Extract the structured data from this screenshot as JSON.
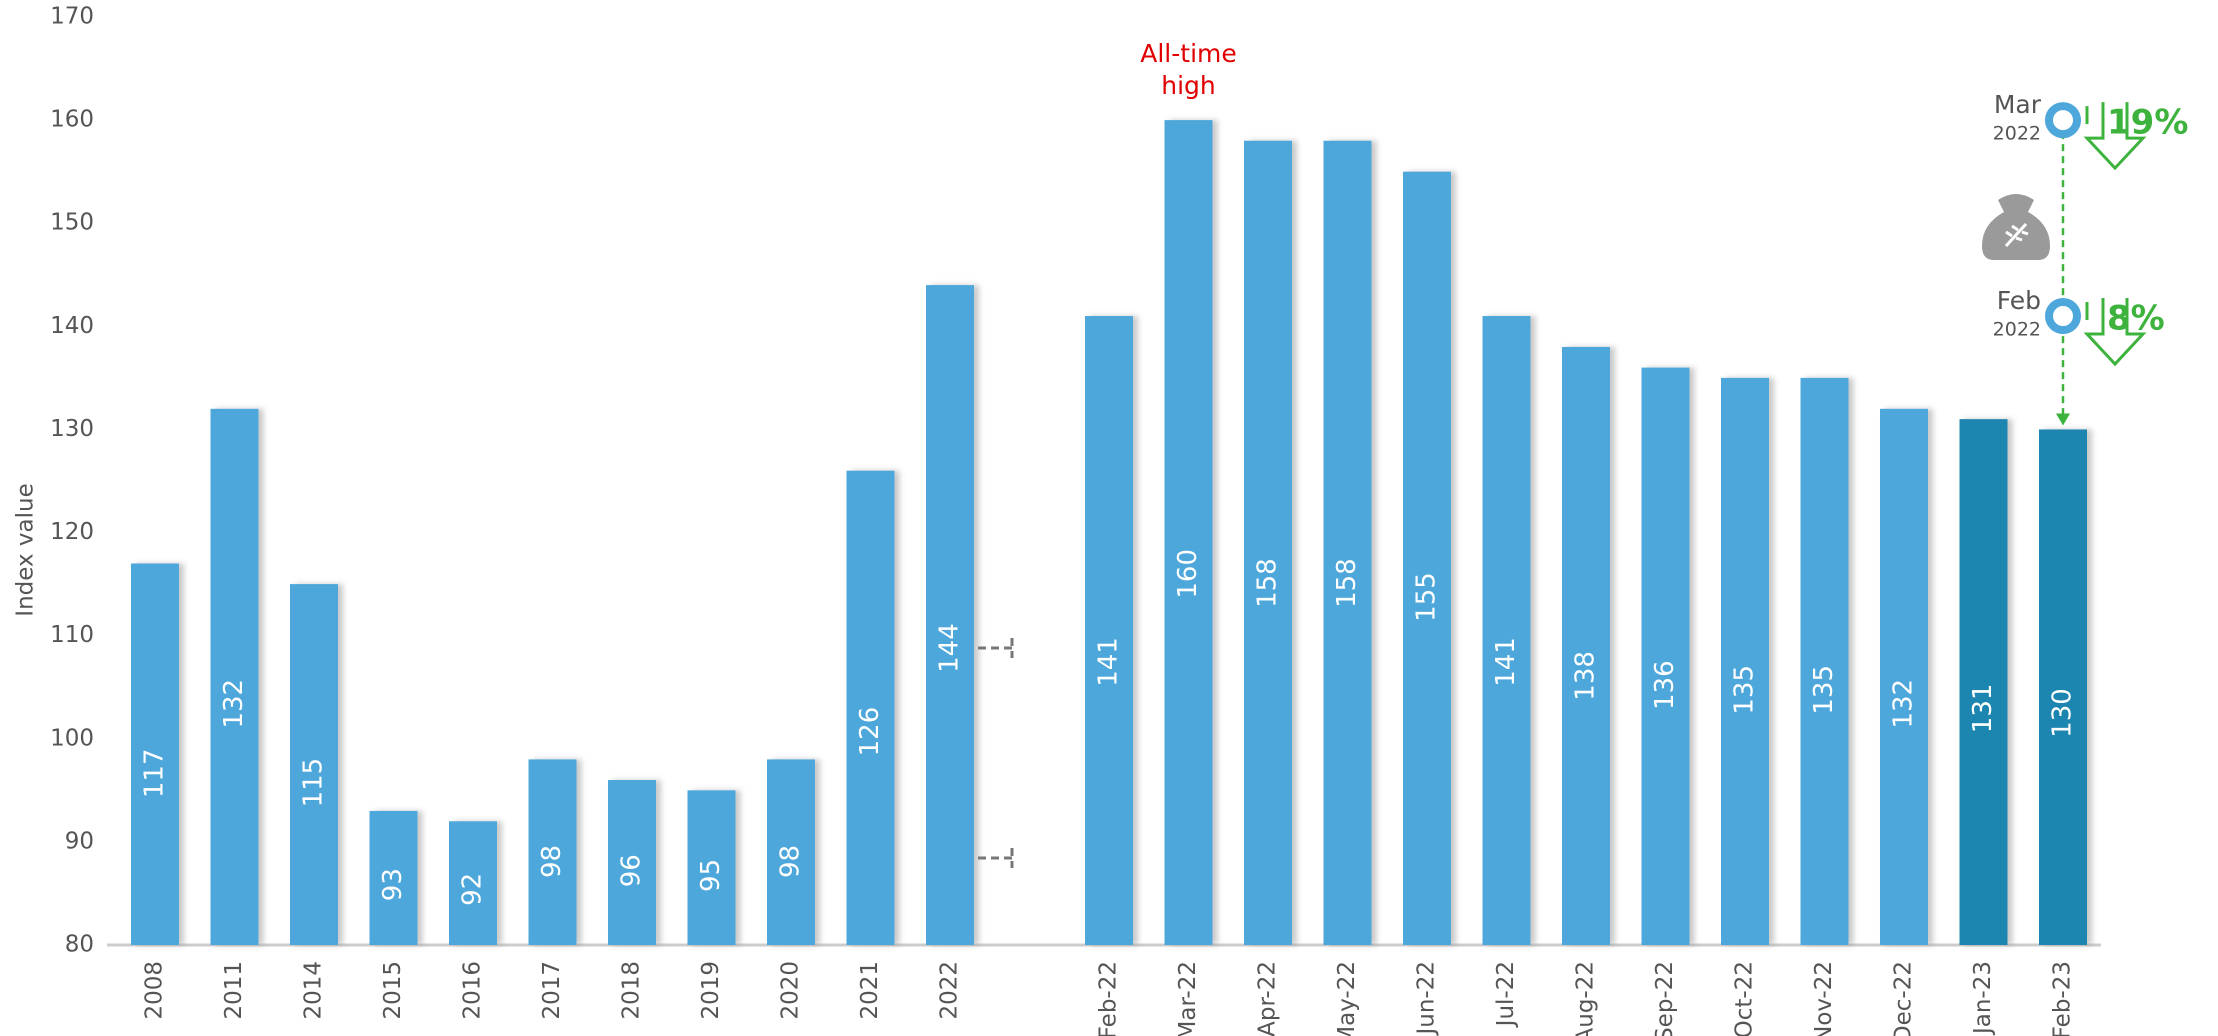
{
  "chart_data": {
    "type": "bar",
    "y_label": "Index value",
    "categories": [
      "2008",
      "2011",
      "2014",
      "2015",
      "2016",
      "2017",
      "2018",
      "2019",
      "2020",
      "2021",
      "2022",
      null,
      "Feb-22",
      "Mar-22",
      "Apr-22",
      "May-22",
      "Jun-22",
      "Jul-22",
      "Aug-22",
      "Sep-22",
      "Oct-22",
      "Nov-22",
      "Dec-22",
      "Jan-23",
      "Feb-23"
    ],
    "values": [
      117,
      132,
      115,
      93,
      92,
      98,
      96,
      95,
      98,
      126,
      144,
      null,
      141,
      160,
      158,
      158,
      155,
      141,
      138,
      136,
      135,
      135,
      132,
      131,
      130
    ],
    "colors": [
      "#4ea7db",
      "#4ea7db",
      "#4ea7db",
      "#4ea7db",
      "#4ea7db",
      "#4ea7db",
      "#4ea7db",
      "#4ea7db",
      "#4ea7db",
      "#4ea7db",
      "#4ea7db",
      null,
      "#4ea7db",
      "#4ea7db",
      "#4ea7db",
      "#4ea7db",
      "#4ea7db",
      "#4ea7db",
      "#4ea7db",
      "#4ea7db",
      "#4ea7db",
      "#4ea7db",
      "#4ea7db",
      "#1a85b0",
      "#1a85b0"
    ],
    "ylim": [
      80,
      170
    ],
    "yticks": [
      80,
      90,
      100,
      110,
      120,
      130,
      140,
      150,
      160,
      170
    ],
    "annotation": "All-time high",
    "callouts": [
      {
        "month": "Mar",
        "year": "2022",
        "change": "19%"
      },
      {
        "month": "Feb",
        "year": "2022",
        "change": "8%"
      }
    ]
  }
}
